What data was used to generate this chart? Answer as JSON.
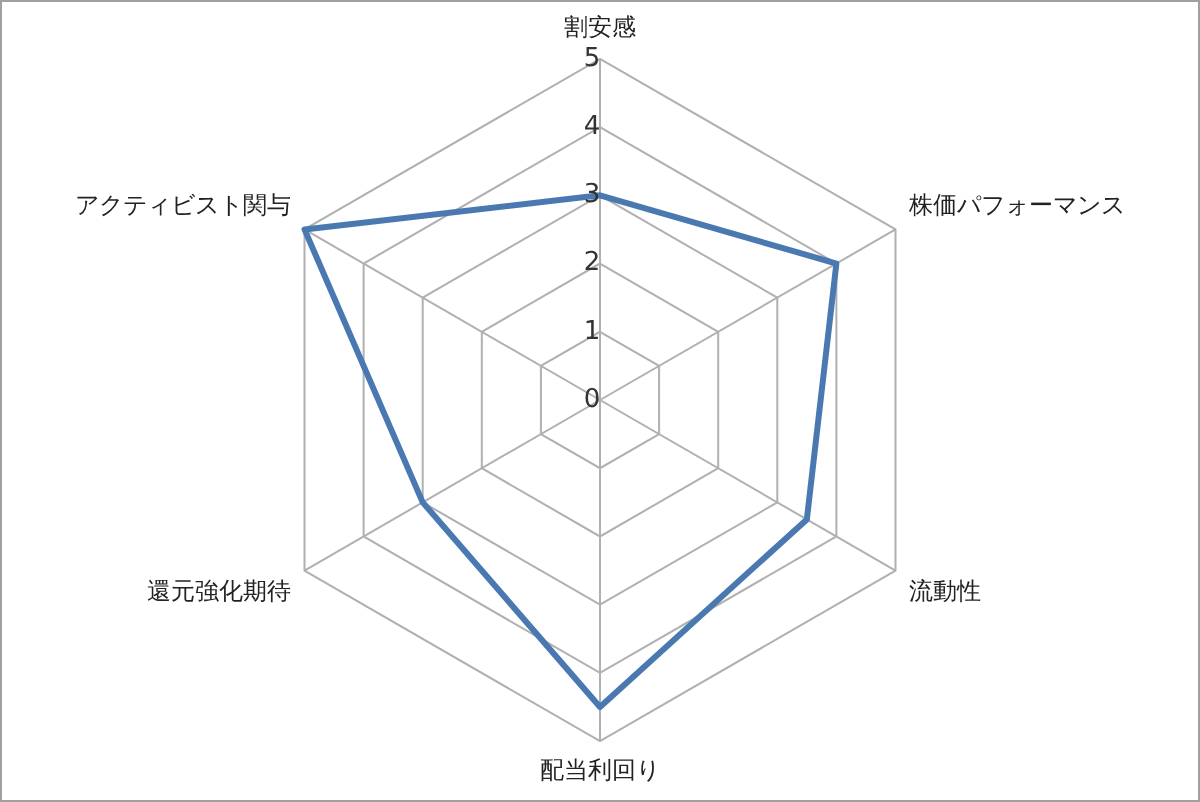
{
  "chart_data": {
    "type": "radar",
    "categories": [
      "割安感",
      "株価パフォーマンス",
      "流動性",
      "配当利回り",
      "還元強化期待",
      "アクティビスト関与"
    ],
    "series": [
      {
        "color": "#4a78b0",
        "values": [
          3,
          4,
          3.5,
          4.5,
          3,
          5
        ]
      }
    ],
    "ylim": [
      0,
      5
    ],
    "yticks": [
      0,
      1,
      2,
      3,
      4,
      5
    ],
    "grid": true,
    "marker": "none",
    "line_style": "solid"
  }
}
